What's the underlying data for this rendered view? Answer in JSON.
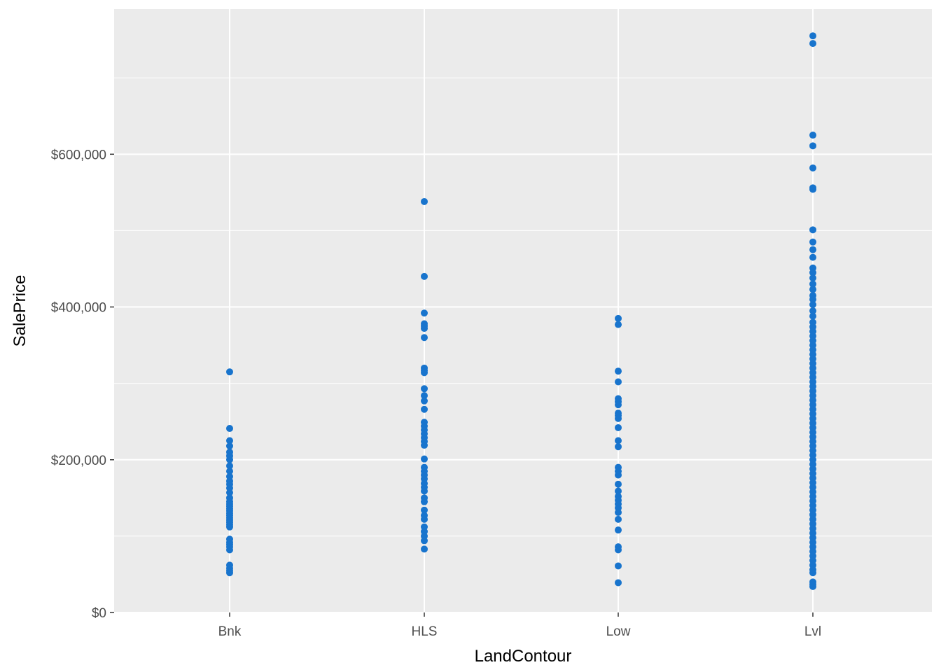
{
  "chart_data": {
    "type": "scatter",
    "xlabel": "LandContour",
    "ylabel": "SalePrice",
    "categories": [
      "Bnk",
      "HLS",
      "Low",
      "Lvl"
    ],
    "ylim": [
      0,
      790000
    ],
    "y_ticks": [
      0,
      200000,
      400000,
      600000
    ],
    "y_tick_labels": [
      "$0",
      "$200,000",
      "$400,000",
      "$600,000"
    ],
    "grid": true,
    "legend": "none",
    "colors": {
      "panel": "#ebebeb",
      "grid": "#ffffff",
      "point": "#1874cd"
    },
    "series": [
      {
        "category": "Bnk",
        "values": [
          315000,
          241000,
          225000,
          218000,
          210000,
          205000,
          200000,
          192000,
          185000,
          178000,
          172000,
          168000,
          163000,
          157000,
          150000,
          145000,
          142000,
          139000,
          136000,
          133000,
          130000,
          127000,
          124000,
          121000,
          118000,
          115000,
          112000,
          96000,
          92000,
          89000,
          86000,
          82000,
          62000,
          58000,
          55000,
          52000
        ]
      },
      {
        "category": "HLS",
        "values": [
          538000,
          440000,
          392000,
          378000,
          375000,
          372000,
          360000,
          320000,
          317000,
          314000,
          293000,
          284000,
          277000,
          266000,
          249000,
          244000,
          239000,
          234000,
          229000,
          224000,
          219000,
          201000,
          190000,
          185000,
          180000,
          175000,
          169000,
          164000,
          159000,
          150000,
          145000,
          134000,
          127000,
          122000,
          112000,
          106000,
          100000,
          94000,
          83000
        ]
      },
      {
        "category": "Low",
        "values": [
          385000,
          377000,
          316000,
          302000,
          280000,
          276000,
          272000,
          261000,
          258000,
          254000,
          242000,
          225000,
          217000,
          190000,
          185000,
          180000,
          168000,
          159000,
          152000,
          147000,
          142000,
          137000,
          131000,
          122000,
          108000,
          86000,
          82000,
          61000,
          39000
        ]
      },
      {
        "category": "Lvl",
        "values": [
          755000,
          745000,
          625000,
          611000,
          582000,
          556000,
          554000,
          501000,
          485000,
          475000,
          465000,
          451000,
          445000,
          438000,
          430000,
          423000,
          415000,
          410000,
          403000,
          395000,
          388000,
          380000,
          374000,
          368000,
          362000,
          356000,
          350000,
          344000,
          338000,
          332000,
          326000,
          320000,
          314000,
          308000,
          302000,
          296000,
          290000,
          284000,
          278000,
          272000,
          266000,
          260000,
          254000,
          248000,
          242000,
          236000,
          230000,
          224000,
          218000,
          212000,
          206000,
          200000,
          194000,
          188000,
          182000,
          176000,
          170000,
          164000,
          158000,
          152000,
          146000,
          140000,
          134000,
          128000,
          122000,
          116000,
          110000,
          104000,
          98000,
          92000,
          86000,
          80000,
          74000,
          68000,
          62000,
          56000,
          52000,
          40000,
          37000,
          34000
        ]
      }
    ]
  }
}
